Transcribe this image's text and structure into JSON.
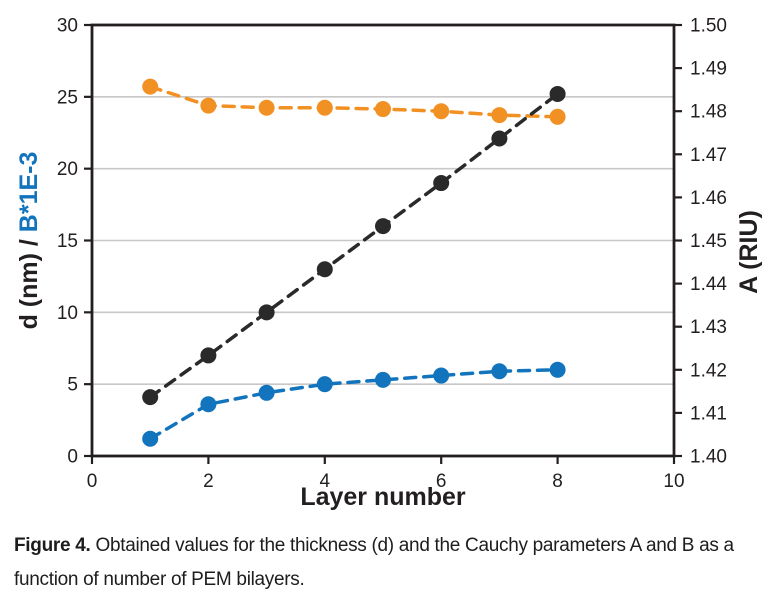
{
  "figure": {
    "caption_label": "Figure 4.",
    "caption_text": " Obtained values for the thickness (d) and the Cauchy parameters A and B as a function of number of PEM bilayers."
  },
  "chart_data": {
    "type": "scatter",
    "x": [
      1,
      2,
      3,
      4,
      5,
      6,
      7,
      8
    ],
    "series": [
      {
        "name": "A (RIU)",
        "axis": "right",
        "color": "#f29123",
        "marker": "circle",
        "line": "dashed",
        "values": [
          1.4857,
          1.4813,
          1.4808,
          1.4808,
          1.4805,
          1.48,
          1.4791,
          1.4787
        ]
      },
      {
        "name": "B*1E-3",
        "axis": "left",
        "color": "#1274bc",
        "marker": "circle",
        "line": "dashed",
        "values": [
          1.2,
          3.6,
          4.4,
          5.0,
          5.3,
          5.6,
          5.9,
          6.0
        ]
      },
      {
        "name": "d (nm)",
        "axis": "left",
        "color": "#2a2a2a",
        "marker": "circle",
        "line": "dashed",
        "values": [
          4.1,
          7.0,
          10.0,
          13.0,
          16.0,
          19.0,
          22.1,
          25.2
        ]
      }
    ],
    "xlabel": "Layer number",
    "ylabel_left_black": "d (nm) / ",
    "ylabel_left_blue": "B*1E-3",
    "ylabel_right": "A (RIU)",
    "xlim": [
      0,
      10
    ],
    "xticks": [
      0,
      2,
      4,
      6,
      8,
      10
    ],
    "ylim_left": [
      0,
      30
    ],
    "yticks_left": [
      0,
      5,
      10,
      15,
      20,
      25,
      30
    ],
    "ylim_right": [
      1.4,
      1.5
    ],
    "yticks_right": [
      1.4,
      1.41,
      1.42,
      1.43,
      1.44,
      1.45,
      1.46,
      1.47,
      1.48,
      1.49,
      1.5
    ],
    "grid": "horizontal",
    "legend": "none",
    "colors": {
      "ink": "#231f20",
      "grid": "#c8c8c8",
      "background": "#ffffff"
    }
  }
}
